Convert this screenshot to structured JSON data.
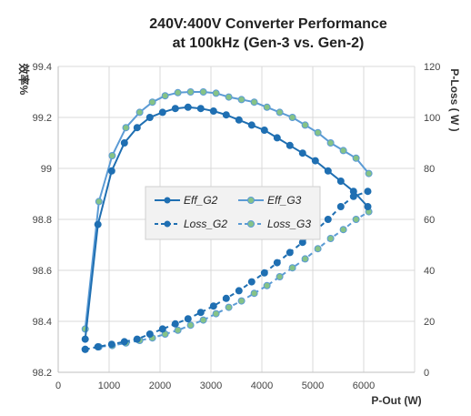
{
  "chart_data": {
    "type": "line",
    "title_line1": "240V:400V Converter Performance",
    "title_line2": "at 100kHz (Gen-3 vs. Gen-2)",
    "xlabel": "P-Out  (W)",
    "ylabel_left": "效率%",
    "ylabel_right": "P-Loss ( W )",
    "xlim": [
      0,
      7000
    ],
    "ylim_left": [
      98.2,
      99.4
    ],
    "ylim_right": [
      0,
      120
    ],
    "x_ticks": [
      "0",
      "1000",
      "2000",
      "3000",
      "4000",
      "5000",
      "6000"
    ],
    "y_left_ticks": [
      "98.2",
      "98.4",
      "98.6",
      "98.8",
      "99",
      "99.2",
      "99.4"
    ],
    "y_right_ticks": [
      "0",
      "20",
      "40",
      "60",
      "80",
      "100",
      "120"
    ],
    "grid": true,
    "legend_position": "center",
    "series": [
      {
        "name": "Eff_G2",
        "axis": "left",
        "style": "solid",
        "color": "#1f6fb2",
        "x": [
          530,
          780,
          1050,
          1300,
          1550,
          1800,
          2050,
          2300,
          2550,
          2800,
          3050,
          3300,
          3550,
          3800,
          4050,
          4300,
          4550,
          4800,
          5050,
          5300,
          5550,
          5800,
          6080
        ],
        "y": [
          98.33,
          98.78,
          98.99,
          99.1,
          99.16,
          99.2,
          99.22,
          99.235,
          99.24,
          99.235,
          99.225,
          99.21,
          99.19,
          99.17,
          99.15,
          99.12,
          99.09,
          99.06,
          99.03,
          98.99,
          98.95,
          98.91,
          98.85
        ]
      },
      {
        "name": "Eff_G3",
        "axis": "left",
        "style": "solid",
        "color": "#5b9bd5",
        "x": [
          530,
          800,
          1060,
          1330,
          1600,
          1850,
          2100,
          2350,
          2600,
          2850,
          3100,
          3350,
          3600,
          3850,
          4100,
          4350,
          4600,
          4850,
          5100,
          5350,
          5600,
          5850,
          6100
        ],
        "y": [
          98.37,
          98.87,
          99.05,
          99.16,
          99.22,
          99.26,
          99.285,
          99.297,
          99.3,
          99.3,
          99.295,
          99.28,
          99.27,
          99.26,
          99.24,
          99.22,
          99.2,
          99.17,
          99.14,
          99.1,
          99.07,
          99.04,
          98.98
        ]
      },
      {
        "name": "Loss_G2",
        "axis": "right",
        "style": "dashed",
        "color": "#1f6fb2",
        "x": [
          530,
          780,
          1050,
          1300,
          1550,
          1800,
          2050,
          2300,
          2550,
          2800,
          3050,
          3300,
          3550,
          3800,
          4050,
          4300,
          4550,
          4800,
          5050,
          5300,
          5550,
          5800,
          6080
        ],
        "y": [
          9,
          10,
          11,
          12,
          13,
          15,
          17,
          19,
          21,
          23.5,
          26,
          29,
          32,
          35.5,
          39,
          43,
          47,
          51,
          55.5,
          60,
          65,
          69,
          71
        ]
      },
      {
        "name": "Loss_G3",
        "axis": "right",
        "style": "dashed",
        "color": "#7fbf7f",
        "x": [
          530,
          800,
          1060,
          1330,
          1600,
          1850,
          2100,
          2350,
          2600,
          2850,
          3100,
          3350,
          3600,
          3850,
          4100,
          4350,
          4600,
          4850,
          5100,
          5350,
          5600,
          5850,
          6100
        ],
        "y": [
          9,
          10,
          10.5,
          11.5,
          12.5,
          13.5,
          15,
          16.5,
          18.5,
          20.5,
          23,
          25.5,
          28,
          31,
          34,
          37.5,
          41,
          44.5,
          48.5,
          52.5,
          56,
          60,
          63
        ]
      }
    ]
  },
  "colors": {
    "g2_line": "#1f6fb2",
    "g2_marker": "#1f6fb2",
    "g3_line": "#5b9bd5",
    "g3_marker": "#86c387",
    "g3_loss_line": "#5b9bd5",
    "grid": "#d9d9d9"
  }
}
